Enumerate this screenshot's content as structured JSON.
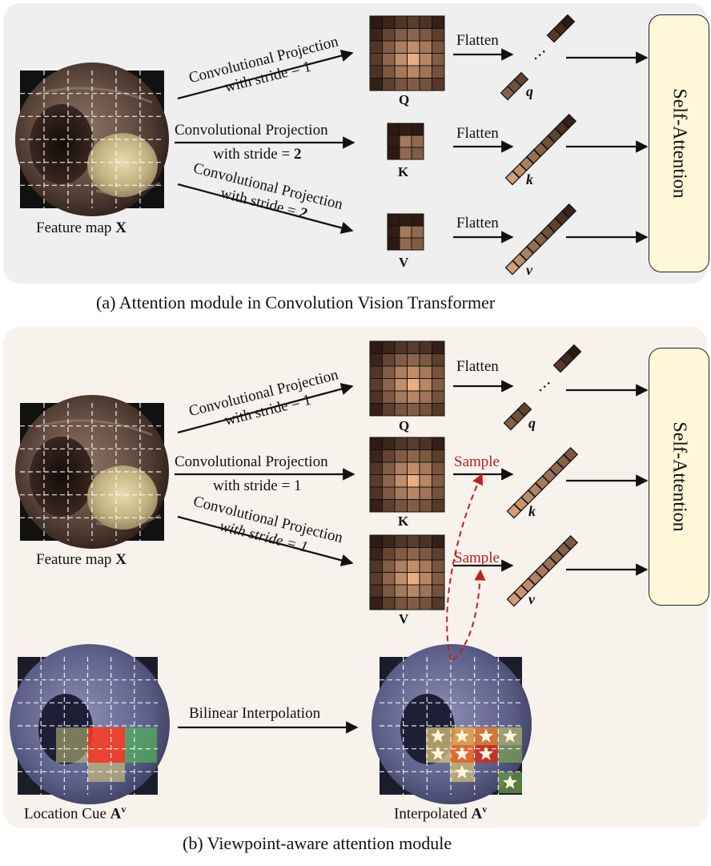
{
  "panel_a": {
    "caption": "(a) Attention module in Convolution Vision Transformer",
    "feature_map_label": "Feature map",
    "feature_map_symbol": "X",
    "q_branch": {
      "line1": "Convolutional Projection",
      "line2": "with stride = 1"
    },
    "k_branch": {
      "line1": "Convolutional Projection",
      "line2_prefix": "with stride = ",
      "line2_value": "2"
    },
    "v_branch": {
      "line1": "Convolutional Projection",
      "line2_prefix": "with stride = ",
      "line2_value": "2"
    },
    "q_letter": "Q",
    "k_letter": "K",
    "v_letter": "V",
    "flatten_label": "Flatten",
    "q_vec": "q",
    "k_vec": "k",
    "v_vec": "v",
    "ellipsis": "⋯",
    "self_attention": "Self-Attention"
  },
  "panel_b": {
    "caption": "(b) Viewpoint-aware  attention module",
    "feature_map_label": "Feature map",
    "feature_map_symbol": "X",
    "q_branch": {
      "line1": "Convolutional Projection",
      "line2": "with stride = 1"
    },
    "k_branch": {
      "line1": "Convolutional Projection",
      "line2": "with stride = 1"
    },
    "v_branch": {
      "line1": "Convolutional Projection",
      "line2": "with stride = 1"
    },
    "q_letter": "Q",
    "k_letter": "K",
    "v_letter": "V",
    "flatten_label": "Flatten",
    "sample_k": "Sample",
    "sample_v": "Sample",
    "q_vec": "q",
    "k_vec": "k",
    "v_vec": "v",
    "ellipsis": "⋯",
    "self_attention": "Self-Attention",
    "bilinear_label": "Bilinear Interpolation",
    "location_cue_label": "Location Cue",
    "location_cue_symbol": "A",
    "interpolated_label": "Interpolated",
    "interpolated_symbol": "A",
    "symbol_superscript": "v"
  },
  "colors": {
    "panel_a_bg": "#efefef",
    "panel_b_bg": "#f8f2ec",
    "self_attention_bg": "#fff7d8",
    "sample_text": "#b81c1c",
    "dashed_arrow": "#c41e1e",
    "token_light": "#f0b488",
    "token_dark": "#2e1a12"
  },
  "icons": {
    "feature_image": "endoscopy-image",
    "location_cue_image": "endoscopy-heatmap-image",
    "interpolated_image": "endoscopy-star-heatmap-image",
    "highlight_marker": "star-icon"
  }
}
